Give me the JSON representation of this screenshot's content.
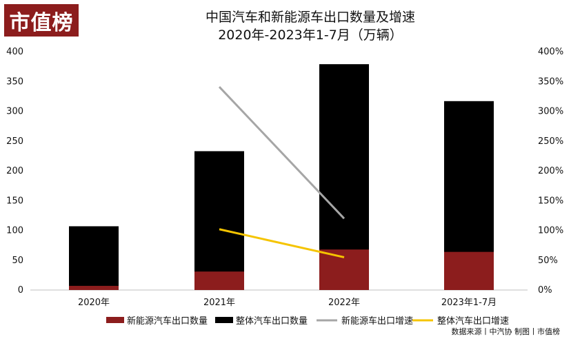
{
  "logo": {
    "text": "市值榜",
    "color": "#8c1d1d"
  },
  "title_line1": "中国汽车和新能源车出口数量及增速",
  "title_line2": "2020年-2023年1-7月（万辆）",
  "footer": "数据来源丨中汽协 制图丨市值榜",
  "chart_data": {
    "type": "bar",
    "stacked": true,
    "categories": [
      "2020年",
      "2021年",
      "2022年",
      "2023年1-7月"
    ],
    "left_axis": {
      "min": 0,
      "max": 400,
      "ticks": [
        "0",
        "50",
        "100",
        "150",
        "200",
        "250",
        "300",
        "350",
        "400"
      ]
    },
    "right_axis": {
      "min": 0,
      "max": 400,
      "ticks": [
        "0%",
        "50%",
        "100%",
        "150%",
        "200%",
        "250%",
        "300%",
        "350%",
        "400%"
      ]
    },
    "grid": false,
    "legend_position": "bottom",
    "series": [
      {
        "name": "新能源汽车出口数量",
        "kind": "bar",
        "color": "#8c1d1d",
        "values": [
          7,
          31,
          68,
          64
        ]
      },
      {
        "name": "整体汽车出口数量",
        "kind": "bar",
        "color": "#000000",
        "values": [
          107,
          233,
          379,
          317
        ]
      },
      {
        "name": "新能源车出口增速",
        "kind": "line",
        "axis": "right",
        "color": "#a6a6a6",
        "values": [
          null,
          341,
          120,
          null
        ]
      },
      {
        "name": "整体汽车出口增速",
        "kind": "line",
        "axis": "right",
        "color": "#f5c400",
        "values": [
          null,
          102,
          55,
          null
        ]
      }
    ]
  }
}
